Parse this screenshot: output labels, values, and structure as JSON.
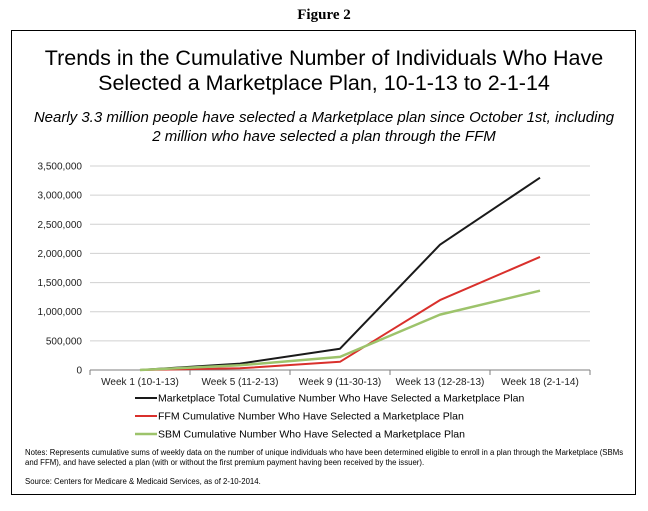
{
  "figure_label": "Figure 2",
  "title_line1": "Trends in the Cumulative Number of Individuals Who Have",
  "title_line2": "Selected a Marketplace Plan, 10-1-13 to 2-1-14",
  "subtitle_line1": "Nearly 3.3 million people have selected a Marketplace plan since October 1st, including",
  "subtitle_line2": "2 million who have selected a plan through the FFM",
  "notes": "Notes:  Represents cumulative sums of weekly data on the number of unique individuals who have been determined eligible to enroll in a plan through the Marketplace (SBMs and FFM), and have selected a plan (with or without the first premium payment having been received by the issuer).",
  "source": "Source:  Centers for Medicare & Medicaid Services, as of 2-10-2014.",
  "chart_data": {
    "type": "line",
    "title": "Trends in the Cumulative Number of Individuals Who Have Selected a Marketplace Plan, 10-1-13 to 2-1-14",
    "xlabel": "",
    "ylabel": "",
    "x": [
      1,
      5,
      9,
      13,
      18
    ],
    "x_tick_labels": [
      "Week 1 (10-1-13)",
      "Week 5 (11-2-13)",
      "Week 9 (11-30-13)",
      "Week 13 (12-28-13)",
      "Week 18 (2-1-14)"
    ],
    "ylim": [
      0,
      3500000
    ],
    "y_ticks": [
      0,
      500000,
      1000000,
      1500000,
      2000000,
      2500000,
      3000000,
      3500000
    ],
    "y_tick_labels": [
      "0",
      "500,000",
      "1,000,000",
      "1,500,000",
      "2,000,000",
      "2,500,000",
      "3,000,000",
      "3,500,000"
    ],
    "grid": true,
    "legend_position": "bottom",
    "series": [
      {
        "name": "Marketplace Total Cumulative Number Who Have Selected a Marketplace Plan",
        "color": "#1a1a1a",
        "values": [
          0,
          110000,
          365000,
          2150000,
          3300000
        ]
      },
      {
        "name": "FFM Cumulative Number Who Have Selected a Marketplace Plan",
        "color": "#d9302c",
        "values": [
          0,
          30000,
          140000,
          1200000,
          1940000
        ]
      },
      {
        "name": "SBM Cumulative Number Who Have Selected a Marketplace Plan",
        "color": "#9dc36b",
        "values": [
          0,
          80000,
          225000,
          950000,
          1360000
        ]
      }
    ]
  }
}
